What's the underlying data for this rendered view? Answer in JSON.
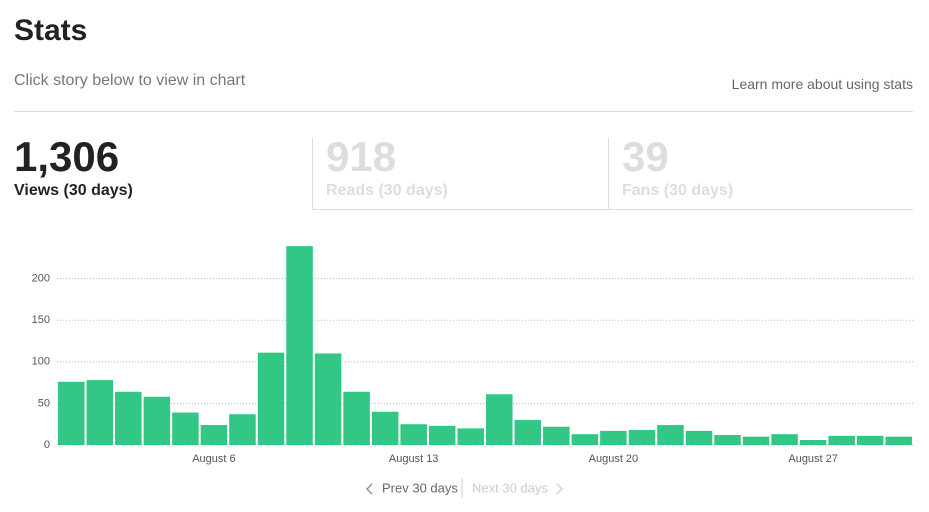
{
  "header": {
    "title": "Stats",
    "subtitle": "Click story below to view in chart",
    "link": "Learn more about using stats"
  },
  "tabs": [
    {
      "value": "1,306",
      "label": "Views (30 days)"
    },
    {
      "value": "918",
      "label": "Reads (30 days)"
    },
    {
      "value": "39",
      "label": "Fans (30 days)"
    }
  ],
  "chart_data": {
    "type": "bar",
    "categories": [
      null,
      null,
      null,
      null,
      null,
      "August 6",
      null,
      null,
      null,
      null,
      null,
      null,
      "August 13",
      null,
      null,
      null,
      null,
      null,
      null,
      "August 20",
      null,
      null,
      null,
      null,
      null,
      null,
      "August 27",
      null,
      null,
      null
    ],
    "values": [
      76,
      78,
      64,
      58,
      39,
      24,
      37,
      111,
      239,
      110,
      64,
      40,
      25,
      23,
      20,
      61,
      30,
      22,
      13,
      17,
      18,
      24,
      17,
      12,
      10,
      13,
      6,
      11,
      11,
      10
    ],
    "color": "#32c785",
    "ylim": [
      0,
      250
    ],
    "yticks": [
      0,
      50,
      100,
      150,
      200
    ],
    "grid": true
  },
  "nav": {
    "prev": "Prev 30 days",
    "next": "Next 30 days"
  }
}
